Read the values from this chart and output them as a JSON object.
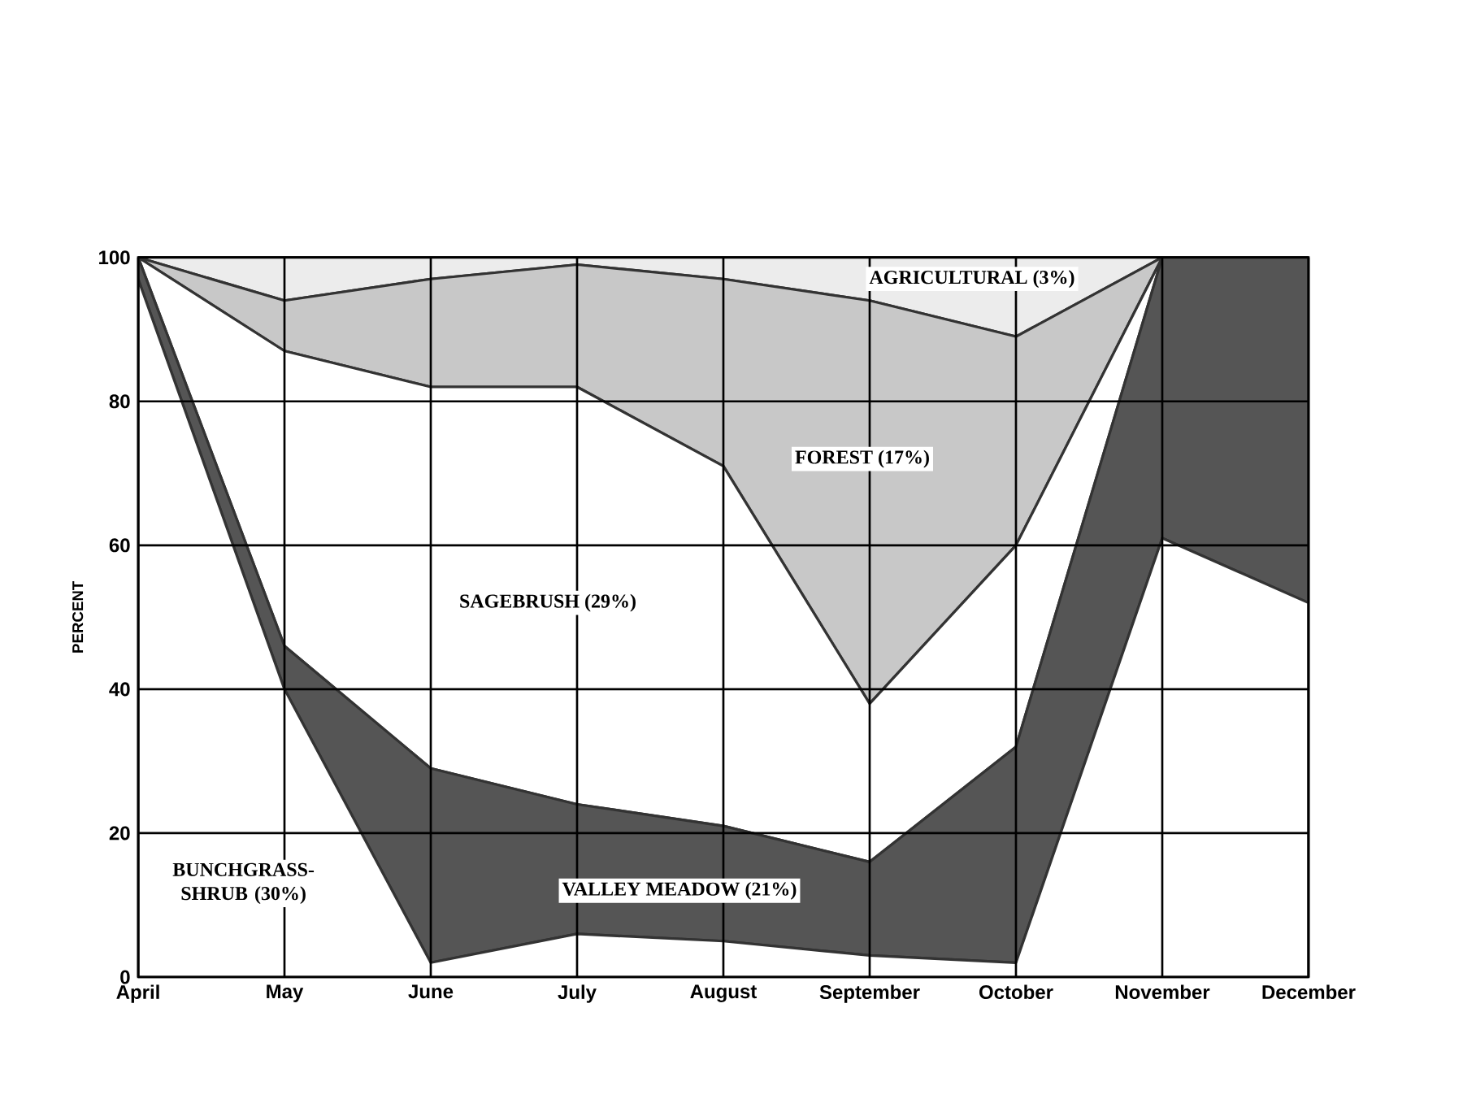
{
  "chart_data": {
    "type": "area",
    "stacked": true,
    "ylabel": "PERCENT",
    "categories": [
      "April",
      "May",
      "June",
      "July",
      "August",
      "September",
      "October",
      "November",
      "December"
    ],
    "ylim": [
      0,
      100
    ],
    "yticks": [
      0,
      20,
      40,
      60,
      80,
      100
    ],
    "grid": true,
    "series": [
      {
        "name": "BUNCHGRASS-SHRUB (30%)",
        "color": "#ffffff",
        "values": [
          97,
          40,
          2,
          6,
          5,
          3,
          2,
          61,
          52
        ]
      },
      {
        "name": "VALLEY MEADOW (21%)",
        "color": "#555555",
        "values": [
          3,
          6,
          27,
          18,
          16,
          13,
          30,
          39,
          48
        ]
      },
      {
        "name": "SAGEBRUSH (29%)",
        "color": "#ffffff",
        "values": [
          0,
          41,
          53,
          58,
          50,
          22,
          28,
          0,
          0
        ]
      },
      {
        "name": "FOREST (17%)",
        "color": "#c8c8c8",
        "values": [
          0,
          7,
          15,
          17,
          26,
          56,
          29,
          0,
          0
        ]
      },
      {
        "name": "AGRICULTURAL (3%)",
        "color": "#ececec",
        "values": [
          0,
          6,
          3,
          1,
          3,
          6,
          11,
          0,
          0
        ]
      }
    ]
  }
}
